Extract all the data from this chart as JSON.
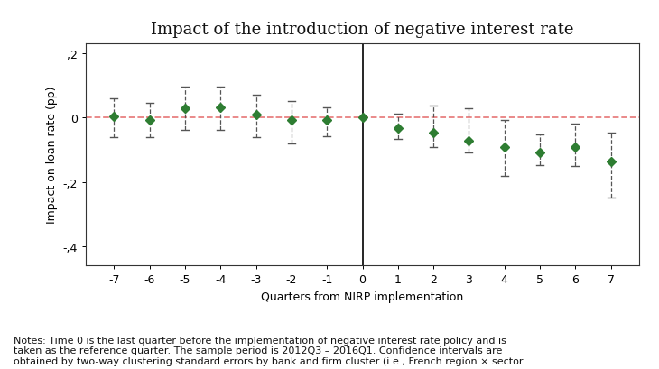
{
  "title": "Impact of the introduction of negative interest rate",
  "xlabel": "Quarters from NIRP implementation",
  "ylabel": "Impact on loan rate (pp)",
  "note": "Notes: Time 0 is the last quarter before the implementation of negative interest rate policy and is\ntaken as the reference quarter. The sample period is 2012Q3 – 2016Q1. Confidence intervals are\nobtained by two-way clustering standard errors by bank and firm cluster (i.e., French region × sector",
  "quarters": [
    -7,
    -6,
    -5,
    -4,
    -3,
    -2,
    -1,
    0,
    1,
    2,
    3,
    4,
    5,
    6,
    7
  ],
  "estimates": [
    0.02,
    -0.08,
    0.3,
    0.32,
    0.1,
    -0.08,
    -0.08,
    0.0,
    -0.32,
    -0.48,
    -0.72,
    -0.92,
    -1.08,
    -0.92,
    -1.38
  ],
  "ci_lower": [
    -0.6,
    -0.62,
    -0.4,
    -0.4,
    -0.6,
    -0.8,
    -0.58,
    0.0,
    -0.68,
    -0.92,
    -1.1,
    -1.82,
    -1.48,
    -1.5,
    -2.48
  ],
  "ci_upper": [
    0.6,
    0.46,
    0.95,
    0.96,
    0.72,
    0.52,
    0.32,
    0.0,
    0.12,
    0.38,
    0.28,
    -0.08,
    -0.52,
    -0.18,
    -0.48
  ],
  "marker_color": "#2e7d32",
  "ci_color": "#555555",
  "ref_line_color": "#e88080",
  "vline_color": "#000000",
  "ylim": [
    -4.6,
    2.3
  ],
  "yticks": [
    -4,
    -2,
    0,
    2
  ],
  "ytick_labels": [
    "-,4",
    "-,2",
    "0",
    ",2"
  ],
  "background_color": "#ffffff",
  "title_fontsize": 13,
  "label_fontsize": 9,
  "tick_fontsize": 9,
  "note_fontsize": 8
}
